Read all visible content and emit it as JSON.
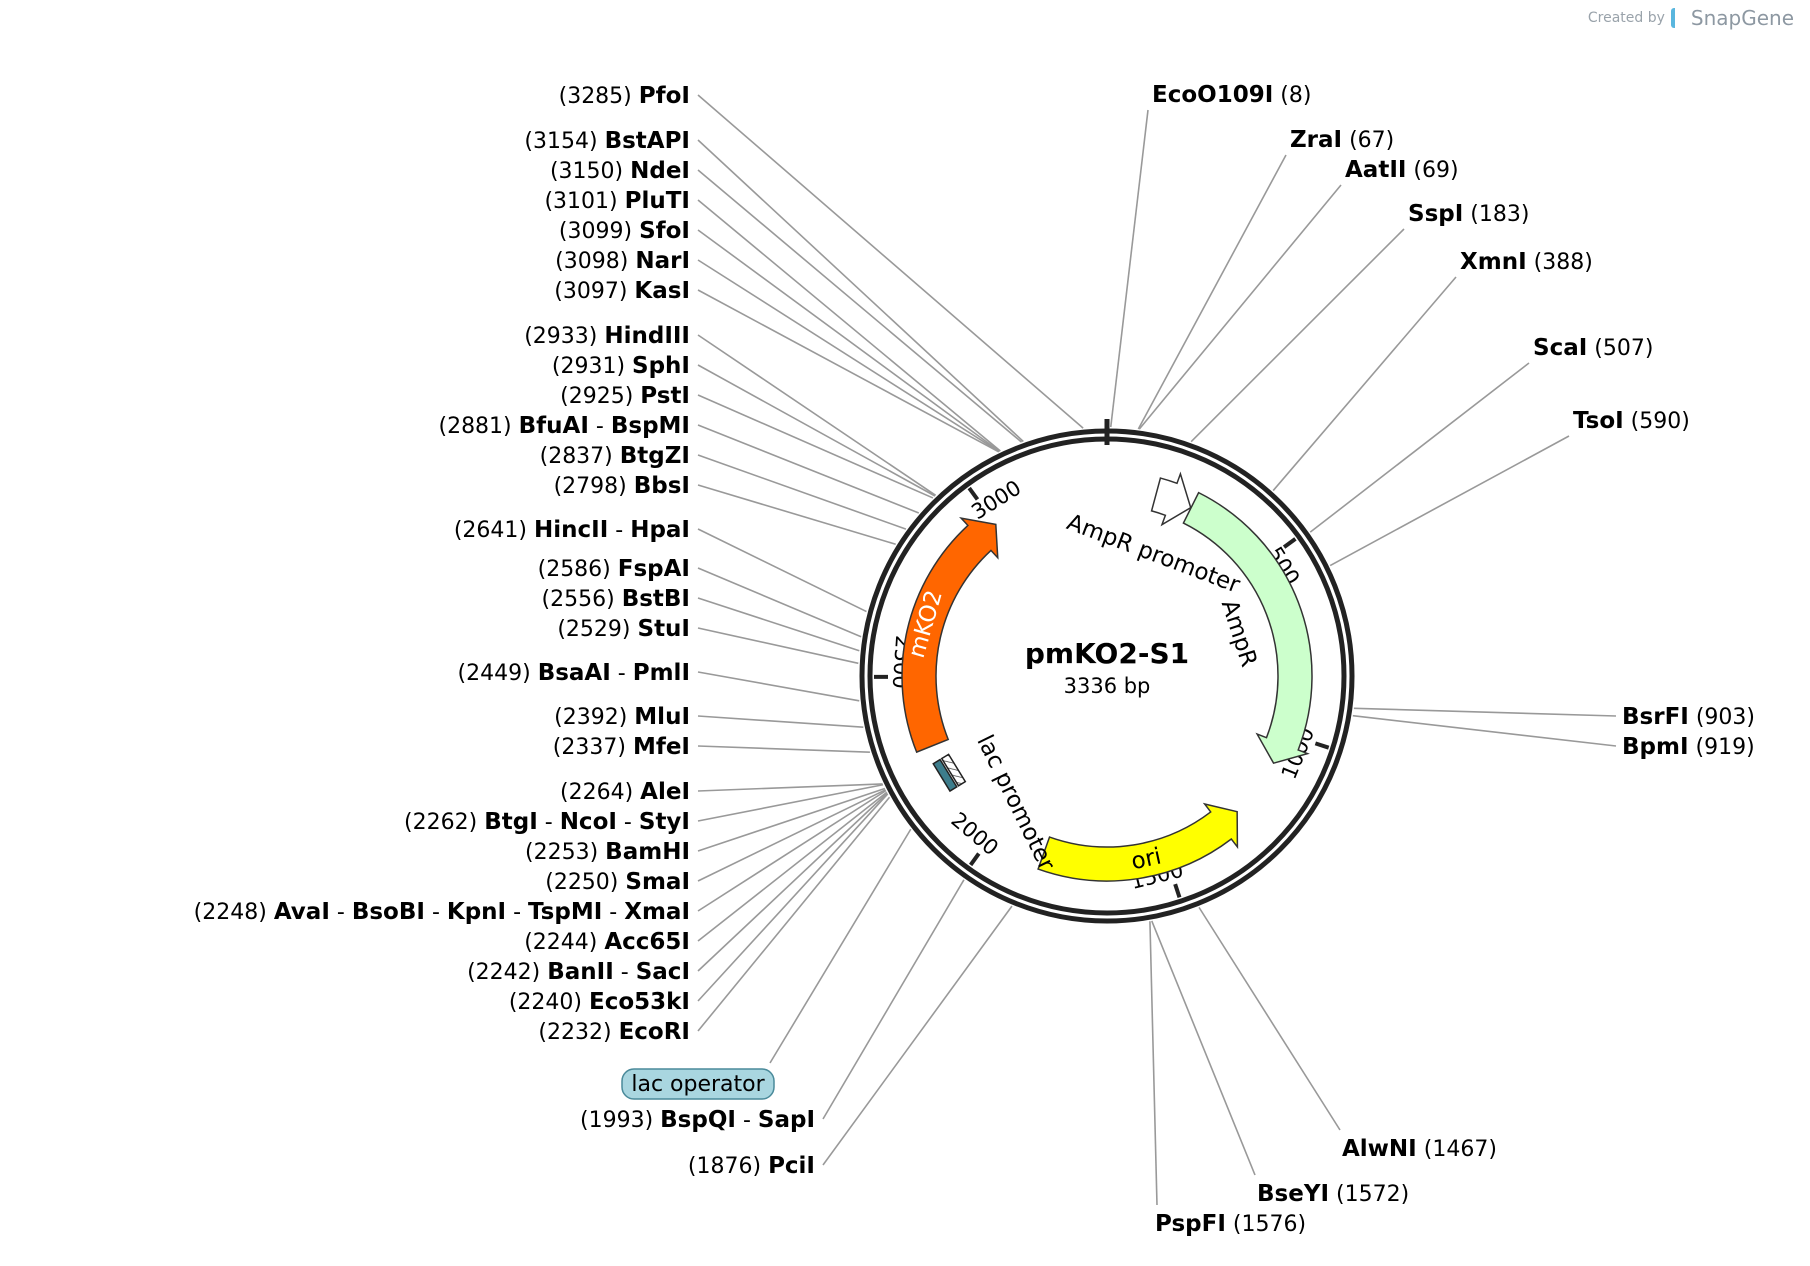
{
  "credit": {
    "prefix": "Created by",
    "brand": "SnapGene"
  },
  "plasmid": {
    "name": "pmKO2-S1",
    "length_label": "3336 bp",
    "length": 3336
  },
  "ticks": [
    {
      "label": "500",
      "pos": 500
    },
    {
      "label": "1000",
      "pos": 1000
    },
    {
      "label": "1500",
      "pos": 1500
    },
    {
      "label": "2000",
      "pos": 2000
    },
    {
      "label": "2500",
      "pos": 2500
    },
    {
      "label": "3000",
      "pos": 3000
    }
  ],
  "features": [
    {
      "name": "AmpR promoter",
      "start": 140,
      "end": 245,
      "direction": "cw",
      "color": "#ffffff",
      "kind": "arrow"
    },
    {
      "name": "AmpR",
      "start": 246,
      "end": 1090,
      "direction": "cw",
      "color": "#ccffcc",
      "kind": "arrow"
    },
    {
      "name": "ori",
      "start": 1262,
      "end": 1850,
      "direction": "ccw",
      "color": "#ffff00",
      "kind": "arrow"
    },
    {
      "name": "lac promoter",
      "start": 2210,
      "end": 2240,
      "direction": "ccw",
      "color": "#3d7d8c",
      "kind": "small"
    },
    {
      "name": "mKO2",
      "start": 2300,
      "end": 3000,
      "direction": "cw",
      "color": "#ff6600",
      "kind": "arrow"
    }
  ],
  "labels": [
    {
      "id": "pfoi",
      "names": [
        "PfoI"
      ],
      "pos": "3285",
      "side": "left"
    },
    {
      "id": "bstapi",
      "names": [
        "BstAPI"
      ],
      "pos": "3154",
      "side": "left"
    },
    {
      "id": "ndei",
      "names": [
        "NdeI"
      ],
      "pos": "3150",
      "side": "left"
    },
    {
      "id": "pluti",
      "names": [
        "PluTI"
      ],
      "pos": "3101",
      "side": "left"
    },
    {
      "id": "sfoi",
      "names": [
        "SfoI"
      ],
      "pos": "3099",
      "side": "left"
    },
    {
      "id": "nari",
      "names": [
        "NarI"
      ],
      "pos": "3098",
      "side": "left"
    },
    {
      "id": "kasi",
      "names": [
        "KasI"
      ],
      "pos": "3097",
      "side": "left"
    },
    {
      "id": "hindiii",
      "names": [
        "HindIII"
      ],
      "pos": "2933",
      "side": "left"
    },
    {
      "id": "sphi",
      "names": [
        "SphI"
      ],
      "pos": "2931",
      "side": "left"
    },
    {
      "id": "psti",
      "names": [
        "PstI"
      ],
      "pos": "2925",
      "side": "left"
    },
    {
      "id": "bfuai",
      "names": [
        "BfuAI",
        "BspMI"
      ],
      "pos": "2881",
      "side": "left"
    },
    {
      "id": "btgzi",
      "names": [
        "BtgZI"
      ],
      "pos": "2837",
      "side": "left"
    },
    {
      "id": "bbsi",
      "names": [
        "BbsI"
      ],
      "pos": "2798",
      "side": "left"
    },
    {
      "id": "hincii",
      "names": [
        "HincII",
        "HpaI"
      ],
      "pos": "2641",
      "side": "left"
    },
    {
      "id": "fspai",
      "names": [
        "FspAI"
      ],
      "pos": "2586",
      "side": "left"
    },
    {
      "id": "bstbi",
      "names": [
        "BstBI"
      ],
      "pos": "2556",
      "side": "left"
    },
    {
      "id": "stui",
      "names": [
        "StuI"
      ],
      "pos": "2529",
      "side": "left"
    },
    {
      "id": "bsaai",
      "names": [
        "BsaAI",
        "PmlI"
      ],
      "pos": "2449",
      "side": "left"
    },
    {
      "id": "mlui",
      "names": [
        "MluI"
      ],
      "pos": "2392",
      "side": "left"
    },
    {
      "id": "mfei",
      "names": [
        "MfeI"
      ],
      "pos": "2337",
      "side": "left"
    },
    {
      "id": "alei",
      "names": [
        "AleI"
      ],
      "pos": "2264",
      "side": "left"
    },
    {
      "id": "btgi",
      "names": [
        "BtgI",
        "NcoI",
        "StyI"
      ],
      "pos": "2262",
      "side": "left"
    },
    {
      "id": "bamhi",
      "names": [
        "BamHI"
      ],
      "pos": "2253",
      "side": "left"
    },
    {
      "id": "smai",
      "names": [
        "SmaI"
      ],
      "pos": "2250",
      "side": "left"
    },
    {
      "id": "avai",
      "names": [
        "AvaI",
        "BsoBI",
        "KpnI",
        "TspMI",
        "XmaI"
      ],
      "pos": "2248",
      "side": "left"
    },
    {
      "id": "acc65i",
      "names": [
        "Acc65I"
      ],
      "pos": "2244",
      "side": "left"
    },
    {
      "id": "banii",
      "names": [
        "BanII",
        "SacI"
      ],
      "pos": "2242",
      "side": "left"
    },
    {
      "id": "eco53ki",
      "names": [
        "Eco53kI"
      ],
      "pos": "2240",
      "side": "left"
    },
    {
      "id": "ecori",
      "names": [
        "EcoRI"
      ],
      "pos": "2232",
      "side": "left"
    },
    {
      "id": "bspqi",
      "names": [
        "BspQI",
        "SapI"
      ],
      "pos": "1993",
      "side": "left"
    },
    {
      "id": "pcii",
      "names": [
        "PciI"
      ],
      "pos": "1876",
      "side": "left"
    },
    {
      "id": "ecoo109i",
      "names": [
        "EcoO109I"
      ],
      "pos": "8",
      "side": "right"
    },
    {
      "id": "zrai",
      "names": [
        "ZraI"
      ],
      "pos": "67",
      "side": "right"
    },
    {
      "id": "aatii",
      "names": [
        "AatII"
      ],
      "pos": "69",
      "side": "right"
    },
    {
      "id": "sspi",
      "names": [
        "SspI"
      ],
      "pos": "183",
      "side": "right"
    },
    {
      "id": "xmni",
      "names": [
        "XmnI"
      ],
      "pos": "388",
      "side": "right"
    },
    {
      "id": "scai",
      "names": [
        "ScaI"
      ],
      "pos": "507",
      "side": "right"
    },
    {
      "id": "tsoi",
      "names": [
        "TsoI"
      ],
      "pos": "590",
      "side": "right"
    },
    {
      "id": "bsrfi",
      "names": [
        "BsrFI"
      ],
      "pos": "903",
      "side": "right"
    },
    {
      "id": "bpmi",
      "names": [
        "BpmI"
      ],
      "pos": "919",
      "side": "right"
    },
    {
      "id": "alwni",
      "names": [
        "AlwNI"
      ],
      "pos": "1467",
      "side": "right"
    },
    {
      "id": "bseyi",
      "names": [
        "BseYI"
      ],
      "pos": "1572",
      "side": "right"
    },
    {
      "id": "pspfi",
      "names": [
        "PspFI"
      ],
      "pos": "1576",
      "side": "right"
    }
  ],
  "feature_callout": {
    "text": "lac operator",
    "color": "#a9d6e0",
    "pos": 2150
  }
}
